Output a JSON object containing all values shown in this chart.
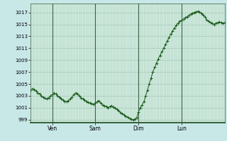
{
  "background_color": "#c8e8e8",
  "plot_bg_color": "#cce8dc",
  "grid_color_major": "#a8c8b8",
  "grid_color_minor": "#b8d8c8",
  "line_color": "#1a5c1a",
  "marker_color": "#1a5c1a",
  "ylim": [
    998.5,
    1018.5
  ],
  "yticks": [
    999,
    1001,
    1003,
    1005,
    1007,
    1009,
    1011,
    1013,
    1015,
    1017
  ],
  "xtick_labels": [
    "Ven",
    "Sam",
    "Dim",
    "Lun"
  ],
  "xtick_positions": [
    12,
    36,
    60,
    84
  ],
  "vline_positions": [
    12,
    36,
    60,
    84
  ],
  "n_points": 109,
  "y_values": [
    1004.0,
    1004.2,
    1004.1,
    1003.8,
    1003.5,
    1003.3,
    1003.0,
    1002.8,
    1002.6,
    1002.5,
    1002.7,
    1003.0,
    1003.2,
    1003.5,
    1003.3,
    1003.0,
    1002.8,
    1002.5,
    1002.3,
    1002.1,
    1002.0,
    1002.2,
    1002.5,
    1002.8,
    1003.2,
    1003.5,
    1003.3,
    1003.0,
    1002.7,
    1002.5,
    1002.3,
    1002.1,
    1001.9,
    1001.8,
    1001.7,
    1001.6,
    1001.8,
    1002.0,
    1002.2,
    1001.8,
    1001.5,
    1001.3,
    1001.2,
    1001.0,
    1001.2,
    1001.3,
    1001.1,
    1001.0,
    1000.8,
    1000.5,
    1000.2,
    1000.0,
    999.8,
    999.6,
    999.4,
    999.2,
    999.1,
    999.0,
    999.1,
    999.3,
    1000.3,
    1001.0,
    1001.5,
    1002.0,
    1003.0,
    1004.0,
    1005.0,
    1006.0,
    1007.0,
    1007.8,
    1008.5,
    1009.2,
    1009.8,
    1010.4,
    1011.0,
    1011.6,
    1012.2,
    1012.8,
    1013.4,
    1013.9,
    1014.4,
    1014.8,
    1015.2,
    1015.5,
    1015.7,
    1015.9,
    1016.1,
    1016.3,
    1016.5,
    1016.7,
    1016.9,
    1017.0,
    1017.1,
    1017.2,
    1017.1,
    1016.9,
    1016.6,
    1016.2,
    1015.8,
    1015.5,
    1015.3,
    1015.2,
    1015.0,
    1015.2,
    1015.3,
    1015.4,
    1015.3,
    1015.2,
    1015.3
  ]
}
